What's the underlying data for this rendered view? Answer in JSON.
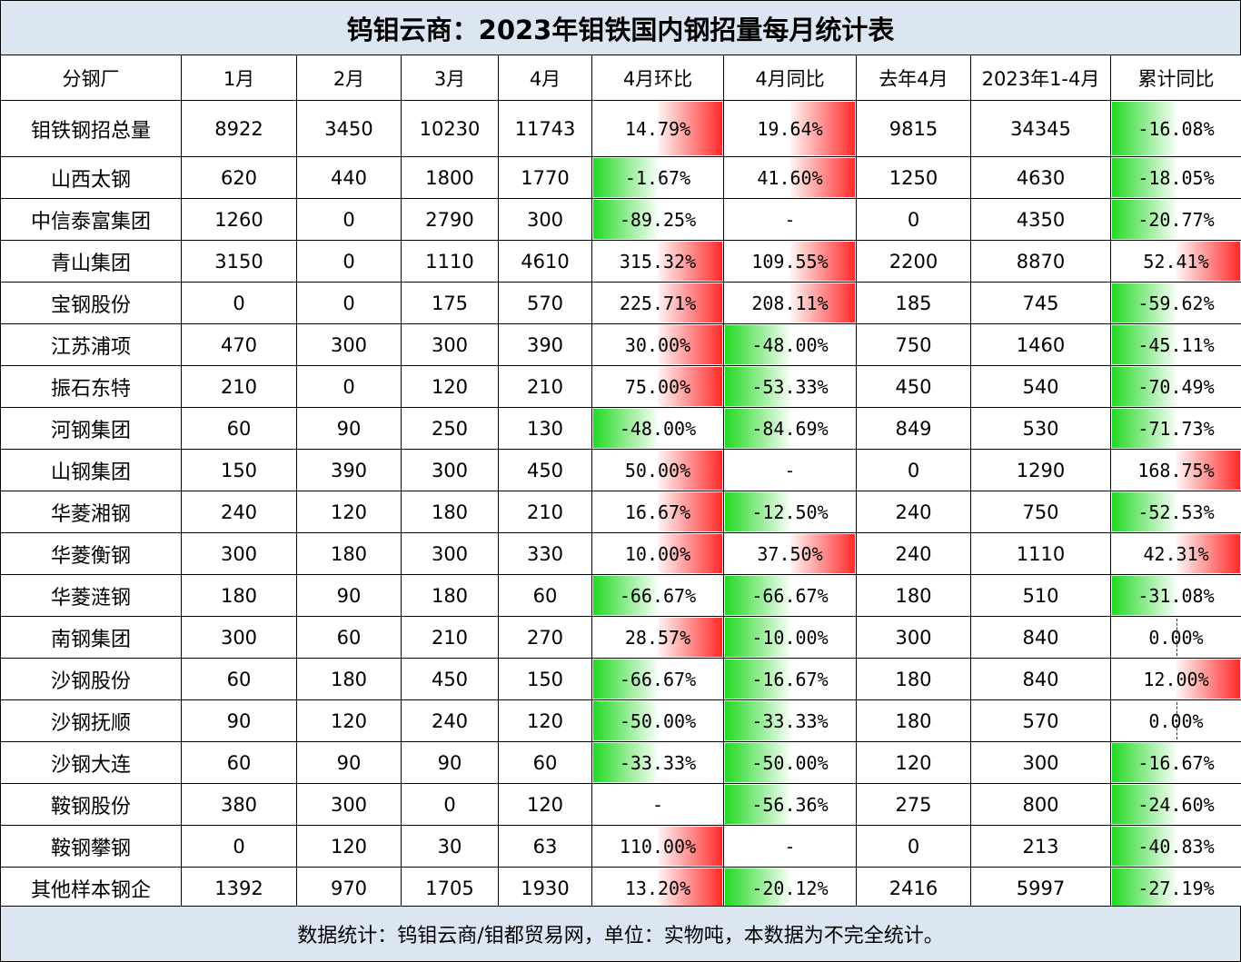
{
  "title": "钨钼云商：2023年钼铁国内钢招量每月统计表",
  "headers": [
    "分钢厂",
    "1月",
    "2月",
    "3月",
    "4月",
    "4月环比",
    "4月同比",
    "去年4月",
    "2023年1-4月",
    "累计同比"
  ],
  "rows": [
    {
      "name": "钼铁钢招总量",
      "m1": "8922",
      "m2": "3450",
      "m3": "10230",
      "m4": "11743",
      "mom": "14.79%",
      "yoy": "19.64%",
      "last_apr": "9815",
      "ytd": "34345",
      "cum_yoy": "-16.08%"
    },
    {
      "name": "山西太钢",
      "m1": "620",
      "m2": "440",
      "m3": "1800",
      "m4": "1770",
      "mom": "-1.67%",
      "yoy": "41.60%",
      "last_apr": "1250",
      "ytd": "4630",
      "cum_yoy": "-18.05%"
    },
    {
      "name": "中信泰富集团",
      "m1": "1260",
      "m2": "0",
      "m3": "2790",
      "m4": "300",
      "mom": "-89.25%",
      "yoy": "-",
      "last_apr": "0",
      "ytd": "4350",
      "cum_yoy": "-20.77%"
    },
    {
      "name": "青山集团",
      "m1": "3150",
      "m2": "0",
      "m3": "1110",
      "m4": "4610",
      "mom": "315.32%",
      "yoy": "109.55%",
      "last_apr": "2200",
      "ytd": "8870",
      "cum_yoy": "52.41%"
    },
    {
      "name": "宝钢股份",
      "m1": "0",
      "m2": "0",
      "m3": "175",
      "m4": "570",
      "mom": "225.71%",
      "yoy": "208.11%",
      "last_apr": "185",
      "ytd": "745",
      "cum_yoy": "-59.62%"
    },
    {
      "name": "江苏浦项",
      "m1": "470",
      "m2": "300",
      "m3": "300",
      "m4": "390",
      "mom": "30.00%",
      "yoy": "-48.00%",
      "last_apr": "750",
      "ytd": "1460",
      "cum_yoy": "-45.11%"
    },
    {
      "name": "振石东特",
      "m1": "210",
      "m2": "0",
      "m3": "120",
      "m4": "210",
      "mom": "75.00%",
      "yoy": "-53.33%",
      "last_apr": "450",
      "ytd": "540",
      "cum_yoy": "-70.49%"
    },
    {
      "name": "河钢集团",
      "m1": "60",
      "m2": "90",
      "m3": "250",
      "m4": "130",
      "mom": "-48.00%",
      "yoy": "-84.69%",
      "last_apr": "849",
      "ytd": "530",
      "cum_yoy": "-71.73%"
    },
    {
      "name": "山钢集团",
      "m1": "150",
      "m2": "390",
      "m3": "300",
      "m4": "450",
      "mom": "50.00%",
      "yoy": "-",
      "last_apr": "0",
      "ytd": "1290",
      "cum_yoy": "168.75%"
    },
    {
      "name": "华菱湘钢",
      "m1": "240",
      "m2": "120",
      "m3": "180",
      "m4": "210",
      "mom": "16.67%",
      "yoy": "-12.50%",
      "last_apr": "240",
      "ytd": "750",
      "cum_yoy": "-52.53%"
    },
    {
      "name": "华菱衡钢",
      "m1": "300",
      "m2": "180",
      "m3": "300",
      "m4": "330",
      "mom": "10.00%",
      "yoy": "37.50%",
      "last_apr": "240",
      "ytd": "1110",
      "cum_yoy": "42.31%"
    },
    {
      "name": "华菱涟钢",
      "m1": "180",
      "m2": "90",
      "m3": "180",
      "m4": "60",
      "mom": "-66.67%",
      "yoy": "-66.67%",
      "last_apr": "180",
      "ytd": "510",
      "cum_yoy": "-31.08%"
    },
    {
      "name": "南钢集团",
      "m1": "300",
      "m2": "60",
      "m3": "210",
      "m4": "270",
      "mom": "28.57%",
      "yoy": "-10.00%",
      "last_apr": "300",
      "ytd": "840",
      "cum_yoy": "0.00%"
    },
    {
      "name": "沙钢股份",
      "m1": "60",
      "m2": "180",
      "m3": "450",
      "m4": "150",
      "mom": "-66.67%",
      "yoy": "-16.67%",
      "last_apr": "180",
      "ytd": "840",
      "cum_yoy": "12.00%"
    },
    {
      "name": "沙钢抚顺",
      "m1": "90",
      "m2": "120",
      "m3": "240",
      "m4": "120",
      "mom": "-50.00%",
      "yoy": "-33.33%",
      "last_apr": "180",
      "ytd": "570",
      "cum_yoy": "0.00%"
    },
    {
      "name": "沙钢大连",
      "m1": "60",
      "m2": "90",
      "m3": "90",
      "m4": "60",
      "mom": "-33.33%",
      "yoy": "-50.00%",
      "last_apr": "120",
      "ytd": "300",
      "cum_yoy": "-16.67%"
    },
    {
      "name": "鞍钢股份",
      "m1": "380",
      "m2": "300",
      "m3": "0",
      "m4": "120",
      "mom": "-",
      "yoy": "-56.36%",
      "last_apr": "275",
      "ytd": "800",
      "cum_yoy": "-24.60%"
    },
    {
      "name": "鞍钢攀钢",
      "m1": "0",
      "m2": "120",
      "m3": "30",
      "m4": "63",
      "mom": "110.00%",
      "yoy": "-",
      "last_apr": "0",
      "ytd": "213",
      "cum_yoy": "-40.83%"
    },
    {
      "name": "其他样本钢企",
      "m1": "1392",
      "m2": "970",
      "m3": "1705",
      "m4": "1930",
      "mom": "13.20%",
      "yoy": "-20.12%",
      "last_apr": "2416",
      "ytd": "5997",
      "cum_yoy": "-27.19%"
    }
  ],
  "footer": "数据统计：钨钼云商/钼都贸易网，单位：实物吨，本数据为不完全统计。",
  "colors": {
    "positive_bar": "#ff2a2a",
    "negative_bar": "#22d922",
    "header_band": "#dce6f1"
  }
}
